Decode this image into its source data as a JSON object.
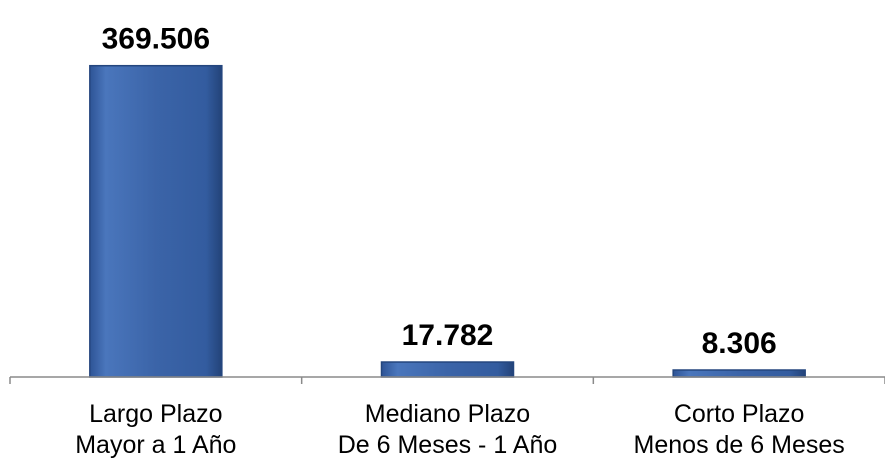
{
  "chart_data": {
    "type": "bar",
    "categories": [
      [
        "Largo Plazo",
        "Mayor a 1 Año"
      ],
      [
        "Mediano Plazo",
        "De 6 Meses - 1 Año"
      ],
      [
        "Corto Plazo",
        "Menos de 6 Meses"
      ]
    ],
    "values": [
      369506,
      17782,
      8306
    ],
    "value_labels": [
      "369.506",
      "17.782",
      "8.306"
    ],
    "title": "",
    "xlabel": "",
    "ylabel": "",
    "ylim": [
      0,
      400000
    ],
    "grid": false,
    "legend": "none",
    "bar_color": "#3B64A8",
    "bar_edge_color": "#24467E"
  }
}
